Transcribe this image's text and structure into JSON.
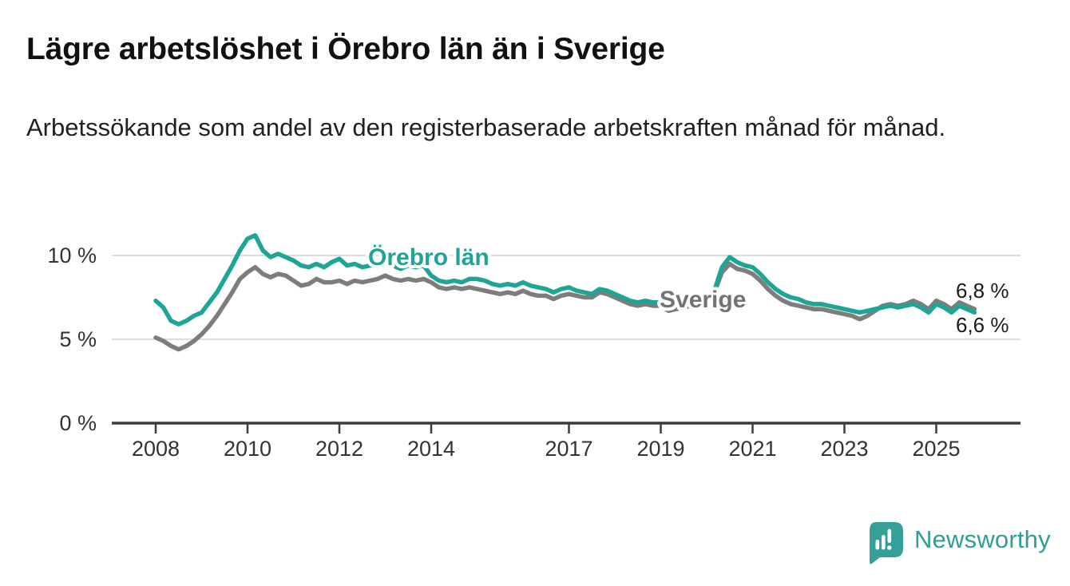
{
  "title": "Lägre arbetslöshet i Örebro län än i Sverige",
  "subtitle": "Arbetssökande som andel av den registerbaserade arbetskraften månad för månad.",
  "colors": {
    "accent_teal": "#1fa595",
    "line_gray": "#7d7d7d",
    "label_gray": "#737373",
    "grid": "#dcdcdc",
    "axis": "#3c3c3c",
    "axis_text": "#333333",
    "annotation_text": "#1a1a1a",
    "logo_teal": "#35a09a",
    "logo_text_teal": "#2f9e98"
  },
  "chart_data": {
    "type": "line",
    "title": "Lägre arbetslöshet i Örebro län än i Sverige",
    "subtitle": "Arbetssökande som andel av den registerbaserade arbetskraften månad för månad.",
    "unit": "%",
    "x_start": 2008,
    "x_step_years": 0.1666667,
    "xlim": [
      2008,
      2026
    ],
    "ylim": [
      0,
      12.5
    ],
    "grid": "horizontal-only",
    "x_ticks": [
      2008,
      2010,
      2012,
      2014,
      2017,
      2019,
      2021,
      2023,
      2025
    ],
    "y_ticks": [
      {
        "value": 0,
        "label": "0 %"
      },
      {
        "value": 5,
        "label": "5 %"
      },
      {
        "value": 10,
        "label": "10 %"
      }
    ],
    "legend_position": "inline-labels",
    "series": [
      {
        "name": "Sverige",
        "color": "#7d7d7d",
        "label_color": "#737373",
        "end_label": "6,8 %",
        "end_value": 6.8,
        "values": [
          5.1,
          4.9,
          4.6,
          4.4,
          4.6,
          4.9,
          5.3,
          5.8,
          6.4,
          7.1,
          7.8,
          8.6,
          9.0,
          9.3,
          8.9,
          8.7,
          8.9,
          8.8,
          8.5,
          8.2,
          8.3,
          8.6,
          8.4,
          8.4,
          8.5,
          8.3,
          8.5,
          8.4,
          8.5,
          8.6,
          8.8,
          8.6,
          8.5,
          8.6,
          8.5,
          8.6,
          8.4,
          8.1,
          8.0,
          8.1,
          8.0,
          8.1,
          8.0,
          7.9,
          7.8,
          7.7,
          7.8,
          7.7,
          7.9,
          7.7,
          7.6,
          7.6,
          7.4,
          7.6,
          7.7,
          7.6,
          7.5,
          7.5,
          7.8,
          7.7,
          7.5,
          7.3,
          7.1,
          7.0,
          7.1,
          7.0,
          7.0,
          6.7,
          6.8,
          6.9,
          7.0,
          7.1,
          7.4,
          7.8,
          9.0,
          9.5,
          9.2,
          9.1,
          8.9,
          8.5,
          8.0,
          7.6,
          7.3,
          7.1,
          7.0,
          6.9,
          6.8,
          6.8,
          6.7,
          6.6,
          6.5,
          6.4,
          6.2,
          6.4,
          6.7,
          7.0,
          7.1,
          7.0,
          7.1,
          7.3,
          7.1,
          6.8,
          7.3,
          7.1,
          6.8,
          7.2,
          7.0,
          6.8
        ]
      },
      {
        "name": "Örebro län",
        "color": "#1fa595",
        "label_color": "#1fa595",
        "end_label": "6,6 %",
        "end_value": 6.6,
        "values": [
          7.3,
          6.9,
          6.1,
          5.9,
          6.1,
          6.4,
          6.6,
          7.2,
          7.8,
          8.6,
          9.4,
          10.3,
          11.0,
          11.2,
          10.3,
          9.9,
          10.1,
          9.9,
          9.7,
          9.4,
          9.3,
          9.5,
          9.3,
          9.6,
          9.8,
          9.4,
          9.5,
          9.3,
          9.4,
          9.5,
          9.6,
          9.4,
          9.2,
          9.4,
          9.3,
          9.4,
          8.8,
          8.5,
          8.4,
          8.5,
          8.4,
          8.6,
          8.6,
          8.5,
          8.3,
          8.2,
          8.3,
          8.2,
          8.4,
          8.2,
          8.1,
          8.0,
          7.8,
          8.0,
          8.1,
          7.9,
          7.8,
          7.7,
          8.0,
          7.9,
          7.7,
          7.5,
          7.3,
          7.2,
          7.3,
          7.2,
          7.2,
          7.1,
          7.0,
          7.0,
          7.1,
          7.2,
          7.5,
          7.9,
          9.3,
          9.9,
          9.6,
          9.4,
          9.3,
          8.9,
          8.4,
          8.0,
          7.7,
          7.5,
          7.4,
          7.2,
          7.1,
          7.1,
          7.0,
          6.9,
          6.8,
          6.7,
          6.6,
          6.7,
          6.8,
          6.9,
          7.0,
          6.9,
          7.0,
          7.1,
          6.9,
          6.6,
          7.1,
          6.9,
          6.6,
          7.0,
          6.8,
          6.6
        ]
      }
    ]
  },
  "branding": {
    "logo_text": "Newsworthy",
    "logo_icon": "bar-chart-exclamation-bubble-icon"
  }
}
